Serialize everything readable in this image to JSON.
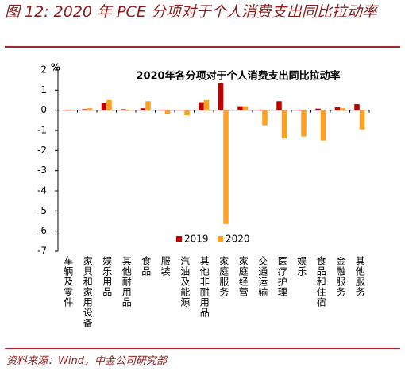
{
  "header": {
    "title": "图 12: 2020 年 PCE 分项对于个人消费支出同比拉动率"
  },
  "chart_data": {
    "type": "bar",
    "title": "2020年各分项对于个人消费支出同比拉动率",
    "y_unit": "%",
    "categories": [
      "车辆及零件",
      "家具和家用设备",
      "娱乐用品",
      "其他耐用品",
      "食品",
      "服装",
      "汽油及能源",
      "其他非耐用品",
      "家庭服务",
      "家庭经营",
      "交通运输",
      "医疗护理",
      "娱乐",
      "食品和住宿",
      "金融服务",
      "其他服务"
    ],
    "series": [
      {
        "name": "2019",
        "color": "#c00000",
        "values": [
          0.02,
          0.05,
          0.35,
          0.05,
          0.1,
          0.03,
          0.02,
          0.4,
          1.35,
          0.2,
          0.03,
          0.45,
          0.03,
          0.08,
          0.15,
          0.3
        ]
      },
      {
        "name": "2020",
        "color": "#ffa020",
        "values": [
          0.03,
          0.1,
          0.5,
          0.02,
          0.45,
          -0.2,
          -0.25,
          0.5,
          -5.65,
          0.2,
          -0.75,
          -1.4,
          -1.3,
          -1.5,
          0.1,
          -0.95
        ]
      }
    ],
    "ylim": [
      -7,
      2
    ],
    "yticks": [
      -7,
      -6,
      -5,
      -4,
      -3,
      -2,
      -1,
      0,
      1,
      2
    ]
  },
  "footer": {
    "source": "资料来源：Wind，中金公司研究部"
  }
}
